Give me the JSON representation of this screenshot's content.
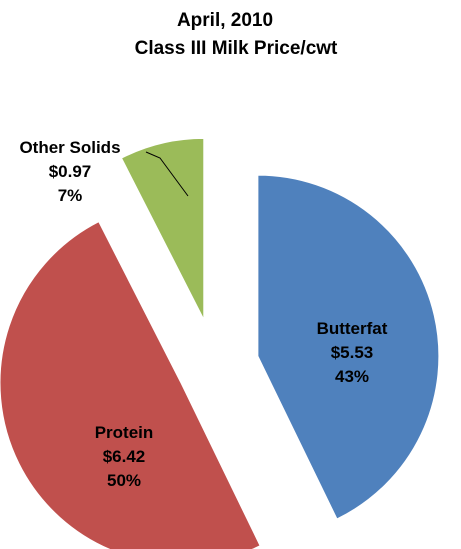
{
  "chart_data": {
    "type": "pie",
    "title": "April, 2010",
    "subtitle": "Class III  Milk Price/cwt",
    "slices": [
      {
        "name": "Butterfat",
        "value": 5.53,
        "value_label": "$5.53",
        "percent": 43,
        "percent_label": "43%",
        "color": "#4f81bd"
      },
      {
        "name": "Protein",
        "value": 6.42,
        "value_label": "$6.42",
        "percent": 50,
        "percent_label": "50%",
        "color": "#c0504d"
      },
      {
        "name": "Other Solids",
        "value": 0.97,
        "value_label": "$0.97",
        "percent": 7,
        "percent_label": "7%",
        "color": "#9bbb59"
      }
    ],
    "exploded": true,
    "legend": "none",
    "data_labels": "name, value, percent"
  }
}
